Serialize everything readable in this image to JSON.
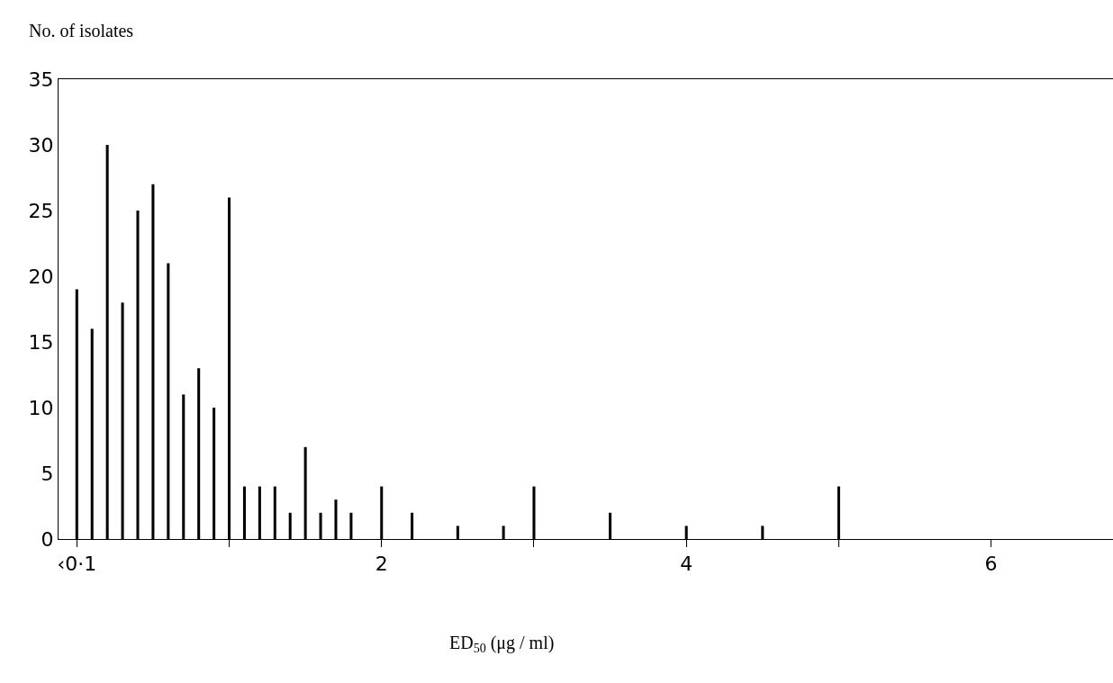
{
  "chart_data": {
    "type": "bar",
    "xlabel": "ED$_{50}$ (μg / ml)",
    "ylabel": "No. of isolates",
    "x": [
      0,
      0.1,
      0.2,
      0.3,
      0.4,
      0.5,
      0.6,
      0.7,
      0.8,
      0.9,
      1.0,
      1.1,
      1.2,
      1.3,
      1.4,
      1.5,
      1.6,
      1.7,
      1.8,
      2.0,
      2.2,
      2.5,
      2.8,
      3.0,
      3.5,
      4.0,
      4.5,
      5.0
    ],
    "values": [
      19,
      16,
      30,
      18,
      25,
      27,
      21,
      11,
      13,
      10,
      26,
      4,
      4,
      4,
      2,
      7,
      2,
      3,
      2,
      4,
      2,
      1,
      1,
      4,
      2,
      1,
      1,
      4
    ],
    "color": "#000000",
    "xlim": [
      -0.12,
      6.8
    ],
    "xticks": [
      {
        "value": 0,
        "label": "‹0·1"
      },
      {
        "value": 1,
        "label": null
      },
      2,
      {
        "value": 3,
        "label": null
      },
      4,
      {
        "value": 5,
        "label": null
      },
      6
    ],
    "ylim": [
      0,
      35
    ],
    "yticks": [
      0,
      5,
      10,
      15,
      20,
      25,
      30,
      35
    ]
  }
}
